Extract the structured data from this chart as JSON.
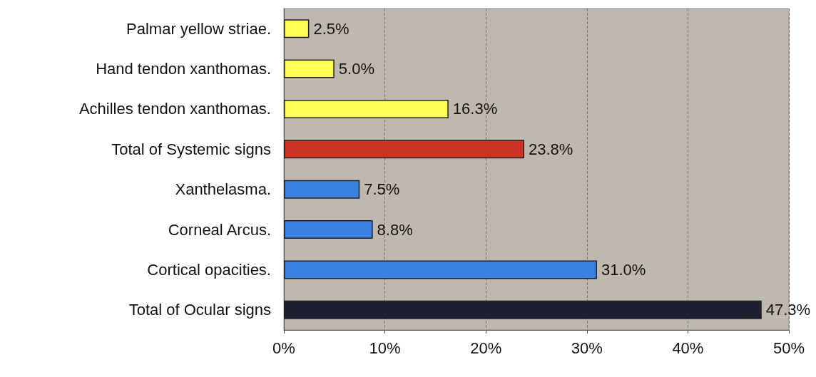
{
  "chart_data": {
    "type": "bar",
    "orientation": "horizontal",
    "categories": [
      "Palmar yellow striae.",
      "Hand tendon xanthomas.",
      "Achilles tendon xanthomas.",
      "Total of Systemic signs",
      "Xanthelasma.",
      "Corneal Arcus.",
      "Cortical opacities.",
      "Total of Ocular signs"
    ],
    "values": [
      2.5,
      5.0,
      16.3,
      23.8,
      7.5,
      8.8,
      31.0,
      47.3
    ],
    "colors": [
      "#ffff55",
      "#ffff55",
      "#ffff55",
      "#cc3322",
      "#3a80e0",
      "#3a80e0",
      "#3a80e0",
      "#1c2030"
    ],
    "value_labels": [
      "2.5%",
      "5.0%",
      "16.3%",
      "23.8%",
      "7.5%",
      "8.8%",
      "31.0%",
      "47.3%"
    ],
    "xlim": [
      0,
      50
    ],
    "xticks": [
      {
        "value": 0,
        "label": "0%"
      },
      {
        "value": 10,
        "label": "10%"
      },
      {
        "value": 20,
        "label": "20%"
      },
      {
        "value": 30,
        "label": "30%"
      },
      {
        "value": 40,
        "label": "40%"
      },
      {
        "value": 50,
        "label": "50%"
      }
    ],
    "grid": "x"
  }
}
